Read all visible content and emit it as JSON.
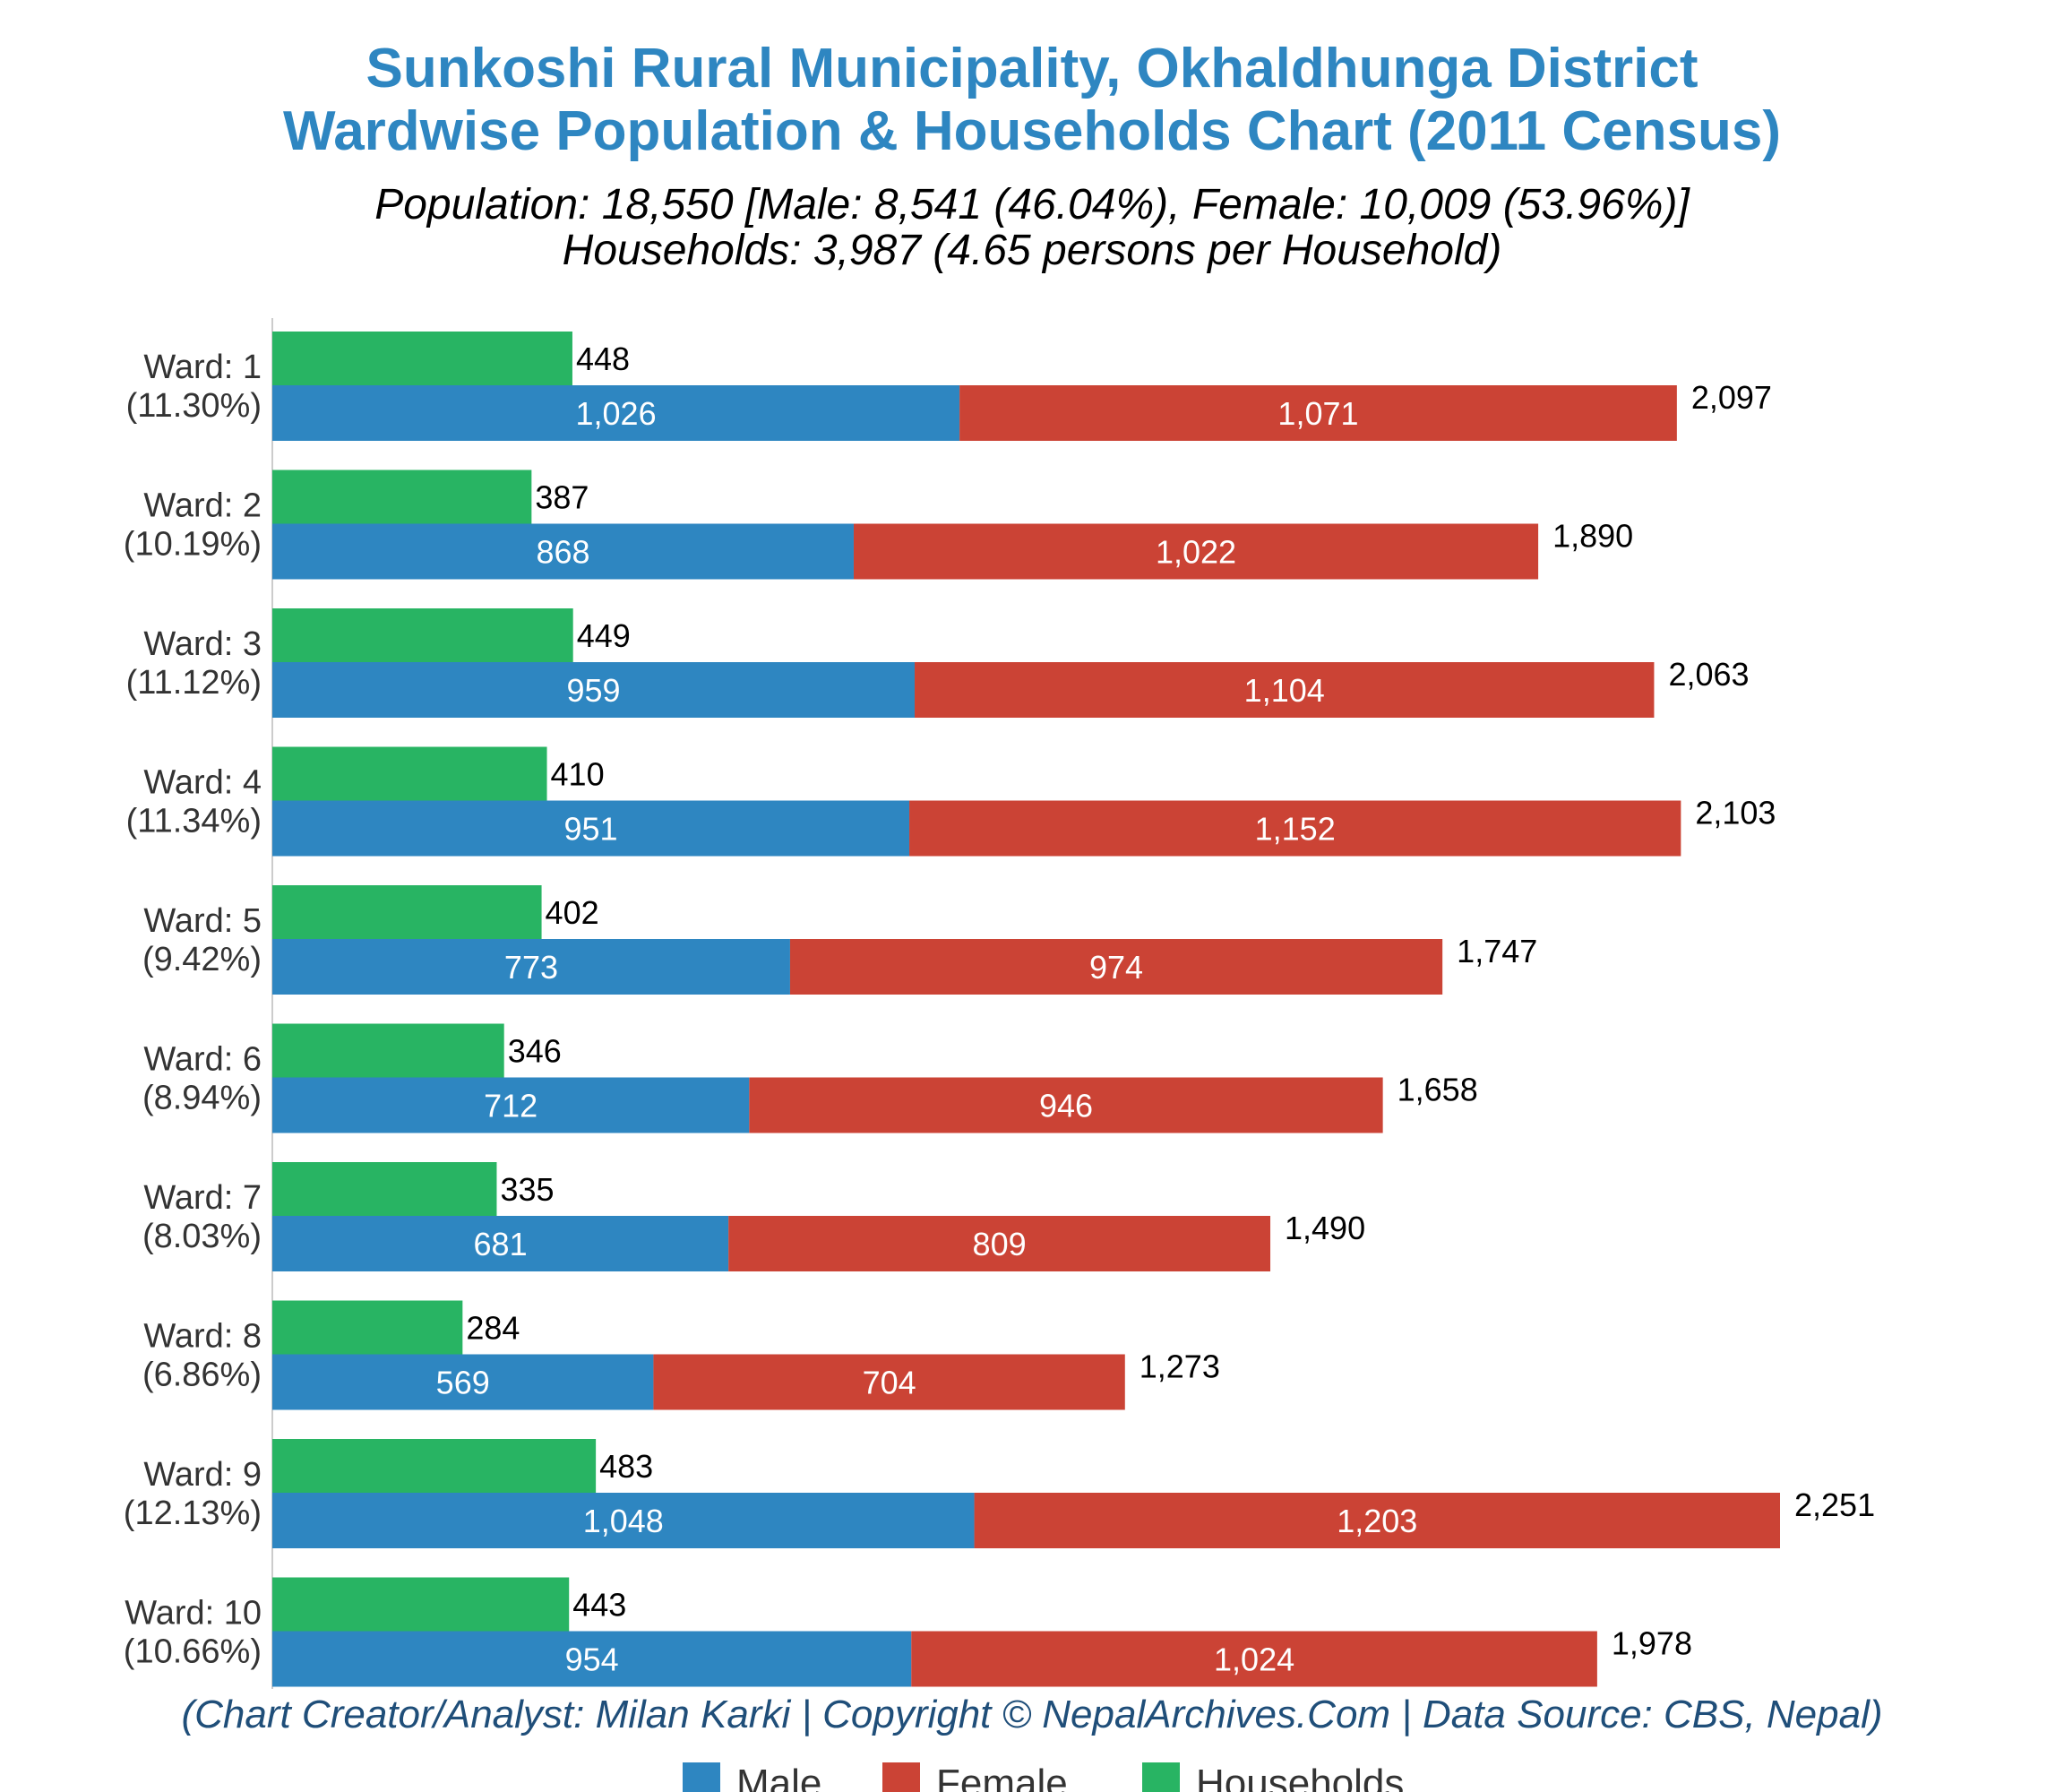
{
  "chart_data": {
    "type": "bar",
    "orientation": "horizontal",
    "stacked_series": [
      "Male",
      "Female"
    ],
    "title_lines": [
      "Sunkoshi Rural Municipality, Okhaldhunga District",
      "Wardwise Population & Households Chart (2011 Census)"
    ],
    "subtitle_lines": [
      "Population: 18,550 [Male: 8,541 (46.04%), Female: 10,009 (53.96%)]",
      "Households: 3,987 (4.65 persons per Household)"
    ],
    "categories": [
      "Ward: 1",
      "Ward: 2",
      "Ward: 3",
      "Ward: 4",
      "Ward: 5",
      "Ward: 6",
      "Ward: 7",
      "Ward: 8",
      "Ward: 9",
      "Ward: 10"
    ],
    "category_share": [
      "(11.30%)",
      "(10.19%)",
      "(11.12%)",
      "(11.34%)",
      "(9.42%)",
      "(8.94%)",
      "(8.03%)",
      "(6.86%)",
      "(12.13%)",
      "(10.66%)"
    ],
    "series": [
      {
        "name": "Male",
        "color": "#2E86C1",
        "values": [
          1026,
          868,
          959,
          951,
          773,
          712,
          681,
          569,
          1048,
          954
        ],
        "labels": [
          "1,026",
          "868",
          "959",
          "951",
          "773",
          "712",
          "681",
          "569",
          "1,048",
          "954"
        ]
      },
      {
        "name": "Female",
        "color": "#CB4335",
        "values": [
          1071,
          1022,
          1104,
          1152,
          974,
          946,
          809,
          704,
          1203,
          1024
        ],
        "labels": [
          "1,071",
          "1,022",
          "1,104",
          "1,152",
          "974",
          "946",
          "809",
          "704",
          "1,203",
          "1,024"
        ]
      },
      {
        "name": "Households",
        "color": "#28B463",
        "values": [
          448,
          387,
          449,
          410,
          402,
          346,
          335,
          284,
          483,
          443
        ],
        "labels": [
          "448",
          "387",
          "449",
          "410",
          "402",
          "346",
          "335",
          "284",
          "483",
          "443"
        ]
      }
    ],
    "totals": [
      2097,
      1890,
      2063,
      2103,
      1747,
      1658,
      1490,
      1273,
      2251,
      1978
    ],
    "total_labels": [
      "2,097",
      "1,890",
      "2,063",
      "2,103",
      "1,747",
      "1,658",
      "1,490",
      "1,273",
      "2,251",
      "1,978"
    ],
    "xlim": [
      0,
      2400
    ],
    "grid": false,
    "legend": {
      "placement": "bottom",
      "items": [
        "Male",
        "Female",
        "Households"
      ]
    },
    "credit": "(Chart Creator/Analyst: Milan Karki | Copyright © NepalArchives.Com | Data Source: CBS, Nepal)"
  }
}
